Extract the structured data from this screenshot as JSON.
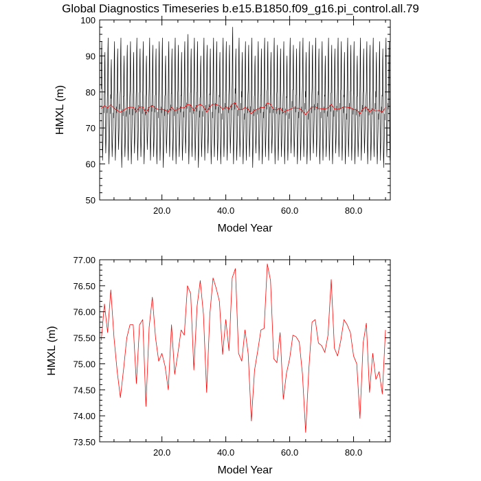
{
  "title": "Global Diagnostics Timeseries b.e15.B1850.f09_g16.pi_control.all.79",
  "chart_data": [
    {
      "type": "line",
      "xlabel": "Model Year",
      "ylabel": "HMXL (m)",
      "xlim": [
        0.5,
        91.5
      ],
      "ylim": [
        50,
        100
      ],
      "xticks": [
        20,
        40,
        60,
        80
      ],
      "xtick_labels": [
        "20.0",
        "40.0",
        "60.0",
        "80.0"
      ],
      "yticks": [
        50,
        60,
        70,
        80,
        90,
        100
      ],
      "ytick_labels": [
        "50",
        "60",
        "70",
        "80",
        "90",
        "100"
      ],
      "grid": false,
      "series": [
        {
          "color": "#000000",
          "kind": "monthly",
          "annual_max": [
            94,
            91,
            95,
            89,
            94,
            92,
            95,
            90,
            93,
            94,
            91,
            95,
            92,
            94,
            90,
            95,
            93,
            92,
            94,
            95,
            90,
            94,
            92,
            95,
            93,
            91,
            94,
            96,
            92,
            95,
            94,
            90,
            95,
            93,
            92,
            95,
            94,
            91,
            95,
            94,
            93,
            98,
            92,
            95,
            91,
            94,
            93,
            95,
            90,
            94,
            92,
            95,
            94,
            91,
            95,
            93,
            92,
            94,
            90,
            95,
            93,
            92,
            94,
            95,
            91,
            94,
            93,
            95,
            92,
            94,
            90,
            95,
            93,
            92,
            95,
            94,
            91,
            95,
            93,
            94,
            90,
            95,
            92,
            94,
            93,
            95,
            91,
            94,
            92,
            95,
            94
          ],
          "annual_min": [
            61,
            63,
            60,
            62,
            61,
            64,
            59,
            62,
            61,
            60,
            63,
            61,
            62,
            60,
            64,
            61,
            62,
            60,
            61,
            59,
            63,
            62,
            61,
            60,
            62,
            61,
            63,
            60,
            62,
            61,
            59,
            62,
            61,
            63,
            60,
            62,
            61,
            60,
            62,
            61,
            63,
            60,
            61,
            62,
            60,
            61,
            62,
            59,
            63,
            61,
            60,
            62,
            61,
            63,
            60,
            61,
            62,
            60,
            61,
            63,
            62,
            60,
            61,
            62,
            60,
            61,
            63,
            62,
            60,
            61,
            62,
            61,
            60,
            63,
            62,
            61,
            60,
            62,
            61,
            60,
            62,
            61,
            63,
            60,
            61,
            62,
            60,
            61,
            59,
            62,
            61
          ],
          "monthly_shape": [
            0.6,
            0.9,
            1.0,
            0.5,
            0.15,
            0.0,
            0.1,
            0.2,
            0.3,
            0.45,
            0.4,
            0.55
          ]
        },
        {
          "color": "#ff0000",
          "kind": "annual",
          "values": [
            75.45,
            76.15,
            75.6,
            76.42,
            75.5,
            74.85,
            74.35,
            74.9,
            75.5,
            75.75,
            75.75,
            74.62,
            75.75,
            75.85,
            74.18,
            75.7,
            76.28,
            75.5,
            75.05,
            75.2,
            74.95,
            74.5,
            75.75,
            74.8,
            75.2,
            75.65,
            75.55,
            76.5,
            76.35,
            74.88,
            76.1,
            76.6,
            75.95,
            74.45,
            75.95,
            76.65,
            76.45,
            76.2,
            75.18,
            75.85,
            75.25,
            76.65,
            76.83,
            75.2,
            75.05,
            75.65,
            75.2,
            73.9,
            74.88,
            75.25,
            75.65,
            75.68,
            76.92,
            76.6,
            75.1,
            75.02,
            75.6,
            74.32,
            74.82,
            75.1,
            75.55,
            75.52,
            75.42,
            74.8,
            73.68,
            74.9,
            75.8,
            75.85,
            75.4,
            75.35,
            75.22,
            75.55,
            76.62,
            75.3,
            75.15,
            75.45,
            75.85,
            75.75,
            75.6,
            75.15,
            75.0,
            73.95,
            75.4,
            75.78,
            74.45,
            75.2,
            74.7,
            74.85,
            74.42,
            75.65
          ]
        }
      ]
    },
    {
      "type": "line",
      "xlabel": "Model Year",
      "ylabel": "HMXL (m)",
      "xlim": [
        0.5,
        91.5
      ],
      "ylim": [
        73.5,
        77.0
      ],
      "xticks": [
        20,
        40,
        60,
        80
      ],
      "xtick_labels": [
        "20.0",
        "40.0",
        "60.0",
        "80.0"
      ],
      "yticks": [
        73.5,
        74.0,
        74.5,
        75.0,
        75.5,
        76.0,
        76.5,
        77.0
      ],
      "ytick_labels": [
        "73.50",
        "74.00",
        "74.50",
        "75.00",
        "75.50",
        "76.00",
        "76.50",
        "77.00"
      ],
      "grid": false,
      "series": [
        {
          "color": "#ff0000",
          "kind": "annual",
          "values": [
            75.45,
            76.15,
            75.6,
            76.42,
            75.5,
            74.85,
            74.35,
            74.9,
            75.5,
            75.75,
            75.75,
            74.62,
            75.75,
            75.85,
            74.18,
            75.7,
            76.28,
            75.5,
            75.05,
            75.2,
            74.95,
            74.5,
            75.75,
            74.8,
            75.2,
            75.65,
            75.55,
            76.5,
            76.35,
            74.88,
            76.1,
            76.6,
            75.95,
            74.45,
            75.95,
            76.65,
            76.45,
            76.2,
            75.18,
            75.85,
            75.25,
            76.65,
            76.83,
            75.2,
            75.05,
            75.65,
            75.2,
            73.9,
            74.88,
            75.25,
            75.65,
            75.68,
            76.92,
            76.6,
            75.1,
            75.02,
            75.6,
            74.32,
            74.82,
            75.1,
            75.55,
            75.52,
            75.42,
            74.8,
            73.68,
            74.9,
            75.8,
            75.85,
            75.4,
            75.35,
            75.22,
            75.55,
            76.62,
            75.3,
            75.15,
            75.45,
            75.85,
            75.75,
            75.6,
            75.15,
            75.0,
            73.95,
            75.4,
            75.78,
            74.45,
            75.2,
            74.7,
            74.85,
            74.42,
            75.65
          ]
        }
      ]
    }
  ]
}
